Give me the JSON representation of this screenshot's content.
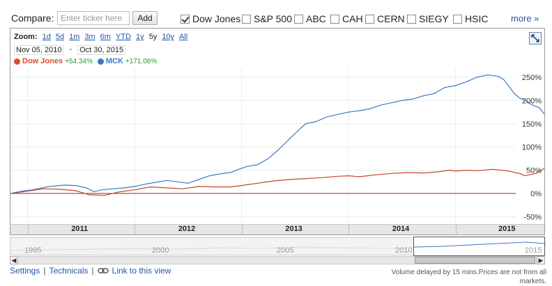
{
  "compare": {
    "label": "Compare:",
    "input_placeholder": "Enter ticker here",
    "add_label": "Add",
    "items": [
      {
        "label": "Dow Jones",
        "checked": true
      },
      {
        "label": "S&P 500",
        "checked": false
      },
      {
        "label": "ABC",
        "checked": false
      },
      {
        "label": "CAH",
        "checked": false
      },
      {
        "label": "CERN",
        "checked": false
      },
      {
        "label": "SIEGY",
        "checked": false
      },
      {
        "label": "HSIC",
        "checked": false
      }
    ],
    "more_label": "more »"
  },
  "zoom": {
    "label": "Zoom:",
    "options": [
      "1d",
      "5d",
      "1m",
      "3m",
      "6m",
      "YTD",
      "1y",
      "5y",
      "10y",
      "All"
    ],
    "active": "5y"
  },
  "date_range": {
    "start": "Nov 05, 2010",
    "separator": "-",
    "end": "Oct 30, 2015"
  },
  "legend": [
    {
      "name": "Dow Jones",
      "change": "+54.34%",
      "color": "#dd4b2a"
    },
    {
      "name": "MCK",
      "change": "+171.06%",
      "color": "#3a78c4"
    }
  ],
  "chart_data": {
    "type": "line",
    "yaxis_ticks": [
      "250%",
      "200%",
      "150%",
      "100%",
      "50%",
      "0%",
      "-50%"
    ],
    "ylim": [
      -75,
      300
    ],
    "xlim": [
      2010.84,
      2015.83
    ],
    "x_ticks": [
      "2011",
      "2012",
      "2013",
      "2014",
      "2015"
    ],
    "grid": true,
    "series": [
      {
        "name": "Dow Jones",
        "color": "#c44428",
        "points": [
          [
            2010.84,
            0
          ],
          [
            2011.0,
            5
          ],
          [
            2011.15,
            10
          ],
          [
            2011.3,
            9
          ],
          [
            2011.45,
            6
          ],
          [
            2011.58,
            -3
          ],
          [
            2011.72,
            -4
          ],
          [
            2011.85,
            3
          ],
          [
            2012.0,
            8
          ],
          [
            2012.15,
            14
          ],
          [
            2012.3,
            12
          ],
          [
            2012.45,
            10
          ],
          [
            2012.6,
            15
          ],
          [
            2012.75,
            14
          ],
          [
            2012.9,
            14
          ],
          [
            2013.0,
            17
          ],
          [
            2013.15,
            22
          ],
          [
            2013.3,
            27
          ],
          [
            2013.45,
            30
          ],
          [
            2013.6,
            32
          ],
          [
            2013.75,
            34
          ],
          [
            2013.9,
            37
          ],
          [
            2014.0,
            38
          ],
          [
            2014.1,
            36
          ],
          [
            2014.25,
            40
          ],
          [
            2014.4,
            43
          ],
          [
            2014.55,
            45
          ],
          [
            2014.7,
            44
          ],
          [
            2014.85,
            47
          ],
          [
            2014.95,
            50
          ],
          [
            2015.0,
            48
          ],
          [
            2015.1,
            50
          ],
          [
            2015.2,
            49
          ],
          [
            2015.35,
            52
          ],
          [
            2015.5,
            48
          ],
          [
            2015.6,
            43
          ],
          [
            2015.65,
            38
          ],
          [
            2015.75,
            43
          ],
          [
            2015.83,
            54
          ]
        ]
      },
      {
        "name": "MCK",
        "color": "#3a78c4",
        "points": [
          [
            2010.84,
            0
          ],
          [
            2010.95,
            5
          ],
          [
            2011.05,
            8
          ],
          [
            2011.2,
            15
          ],
          [
            2011.35,
            18
          ],
          [
            2011.45,
            17
          ],
          [
            2011.55,
            12
          ],
          [
            2011.62,
            4
          ],
          [
            2011.7,
            8
          ],
          [
            2011.8,
            10
          ],
          [
            2011.9,
            12
          ],
          [
            2012.0,
            15
          ],
          [
            2012.1,
            20
          ],
          [
            2012.2,
            24
          ],
          [
            2012.3,
            28
          ],
          [
            2012.4,
            25
          ],
          [
            2012.5,
            22
          ],
          [
            2012.6,
            30
          ],
          [
            2012.7,
            38
          ],
          [
            2012.8,
            42
          ],
          [
            2012.9,
            45
          ],
          [
            2012.95,
            50
          ],
          [
            2013.05,
            58
          ],
          [
            2013.15,
            62
          ],
          [
            2013.25,
            75
          ],
          [
            2013.35,
            95
          ],
          [
            2013.45,
            118
          ],
          [
            2013.55,
            140
          ],
          [
            2013.6,
            150
          ],
          [
            2013.7,
            155
          ],
          [
            2013.8,
            165
          ],
          [
            2013.9,
            170
          ],
          [
            2014.0,
            175
          ],
          [
            2014.1,
            178
          ],
          [
            2014.2,
            182
          ],
          [
            2014.3,
            190
          ],
          [
            2014.4,
            195
          ],
          [
            2014.5,
            200
          ],
          [
            2014.6,
            203
          ],
          [
            2014.7,
            210
          ],
          [
            2014.8,
            215
          ],
          [
            2014.9,
            228
          ],
          [
            2015.0,
            232
          ],
          [
            2015.1,
            240
          ],
          [
            2015.2,
            250
          ],
          [
            2015.3,
            255
          ],
          [
            2015.4,
            252
          ],
          [
            2015.45,
            245
          ],
          [
            2015.5,
            230
          ],
          [
            2015.55,
            215
          ],
          [
            2015.6,
            205
          ],
          [
            2015.65,
            200
          ],
          [
            2015.72,
            190
          ],
          [
            2015.78,
            185
          ],
          [
            2015.83,
            171
          ]
        ]
      }
    ]
  },
  "navigator": {
    "years": [
      "1995",
      "2000",
      "2005",
      "2010",
      "2015"
    ]
  },
  "footer": {
    "settings": "Settings",
    "separator": "|",
    "technicals": "Technicals",
    "link_view": "Link to this view",
    "note": "Volume delayed by 15 mins.Prices are not from all markets."
  }
}
